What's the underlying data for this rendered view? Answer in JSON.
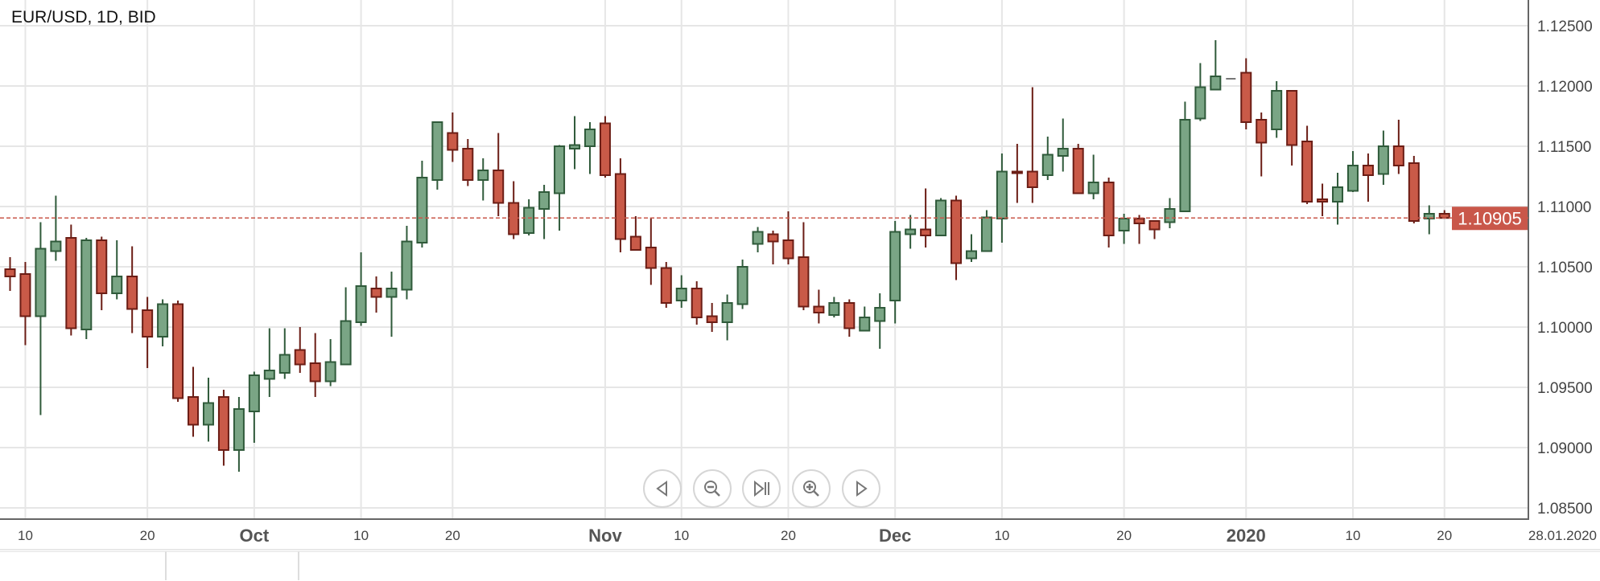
{
  "header": {
    "title": "EUR/USD, 1D, BID"
  },
  "navigation": [
    {
      "name": "scroll-left-button",
      "icon": "triangle-left-icon"
    },
    {
      "name": "zoom-out-button",
      "icon": "zoom-out-icon"
    },
    {
      "name": "reset-to-latest-button",
      "icon": "skip-to-end-icon"
    },
    {
      "name": "zoom-in-button",
      "icon": "zoom-in-icon"
    },
    {
      "name": "scroll-right-button",
      "icon": "triangle-right-icon"
    }
  ],
  "colors": {
    "up_fill": "#7aa585",
    "up_stroke": "#2f5a3a",
    "down_fill": "#c95a48",
    "down_stroke": "#6b1d15",
    "neutral": "#777777",
    "price_line": "#c9574a",
    "grid": "#e6e6e6"
  },
  "chart_data": {
    "type": "candlestick",
    "symbol": "EUR/USD",
    "timeframe": "1D",
    "price_type": "BID",
    "ylim": [
      1.0845,
      1.127
    ],
    "y_ticks": [
      "1.12500",
      "1.12000",
      "1.11500",
      "1.11000",
      "1.10500",
      "1.10000",
      "1.09500",
      "1.09000",
      "1.08500"
    ],
    "grid": true,
    "current_price": "1.10905",
    "x_ticks": [
      {
        "label": "10",
        "index": 1,
        "bold": false
      },
      {
        "label": "20",
        "index": 9,
        "bold": false
      },
      {
        "label": "Oct",
        "index": 16,
        "bold": true
      },
      {
        "label": "10",
        "index": 23,
        "bold": false
      },
      {
        "label": "20",
        "index": 29,
        "bold": false
      },
      {
        "label": "Nov",
        "index": 39,
        "bold": true
      },
      {
        "label": "10",
        "index": 44,
        "bold": false
      },
      {
        "label": "20",
        "index": 51,
        "bold": false
      },
      {
        "label": "Dec",
        "index": 58,
        "bold": true
      },
      {
        "label": "10",
        "index": 65,
        "bold": false
      },
      {
        "label": "20",
        "index": 73,
        "bold": false
      },
      {
        "label": "2020",
        "index": 81,
        "bold": true
      },
      {
        "label": "10",
        "index": 88,
        "bold": false
      },
      {
        "label": "20",
        "index": 94,
        "bold": false
      }
    ],
    "x_end_label": "28.01.2020",
    "ohlc_fields": [
      "open",
      "high",
      "low",
      "close"
    ],
    "candles": [
      [
        1.1048,
        1.1058,
        1.103,
        1.1042
      ],
      [
        1.1044,
        1.1054,
        1.0985,
        1.1009
      ],
      [
        1.1009,
        1.1087,
        1.0927,
        1.1065
      ],
      [
        1.1063,
        1.1109,
        1.1055,
        1.1071
      ],
      [
        1.1074,
        1.1085,
        1.0993,
        1.0999
      ],
      [
        1.0998,
        1.1074,
        1.099,
        1.1072
      ],
      [
        1.1072,
        1.1075,
        1.1014,
        1.1028
      ],
      [
        1.1028,
        1.1072,
        1.1023,
        1.1042
      ],
      [
        1.1042,
        1.1067,
        1.0995,
        1.1015
      ],
      [
        1.1014,
        1.1025,
        1.0966,
        1.0992
      ],
      [
        1.0992,
        1.1023,
        1.0984,
        1.1019
      ],
      [
        1.1019,
        1.1022,
        1.0938,
        1.0941
      ],
      [
        1.0942,
        1.0967,
        1.0909,
        1.0919
      ],
      [
        1.0919,
        1.0958,
        1.0905,
        1.0937
      ],
      [
        1.0942,
        1.0948,
        1.0885,
        1.0898
      ],
      [
        1.0898,
        1.0942,
        1.088,
        1.0932
      ],
      [
        1.093,
        1.0963,
        1.0904,
        1.096
      ],
      [
        1.0957,
        1.0999,
        1.0942,
        1.0964
      ],
      [
        1.0962,
        1.0999,
        1.0957,
        1.0977
      ],
      [
        1.0981,
        1.1,
        1.0962,
        1.0969
      ],
      [
        1.097,
        1.0995,
        1.0942,
        1.0955
      ],
      [
        1.0955,
        1.099,
        1.0951,
        1.0971
      ],
      [
        1.0969,
        1.1033,
        1.0969,
        1.1005
      ],
      [
        1.1004,
        1.1062,
        1.1001,
        1.1034
      ],
      [
        1.1032,
        1.1042,
        1.1012,
        1.1025
      ],
      [
        1.1025,
        1.1046,
        1.0992,
        1.1032
      ],
      [
        1.1031,
        1.1084,
        1.1023,
        1.1071
      ],
      [
        1.107,
        1.1138,
        1.1066,
        1.1124
      ],
      [
        1.1122,
        1.117,
        1.1114,
        1.117
      ],
      [
        1.1161,
        1.1178,
        1.1137,
        1.1147
      ],
      [
        1.1148,
        1.1156,
        1.1117,
        1.1122
      ],
      [
        1.1122,
        1.114,
        1.1105,
        1.113
      ],
      [
        1.113,
        1.1161,
        1.1092,
        1.1103
      ],
      [
        1.1103,
        1.1121,
        1.1073,
        1.1077
      ],
      [
        1.1078,
        1.1106,
        1.1076,
        1.1099
      ],
      [
        1.1098,
        1.1118,
        1.1073,
        1.1112
      ],
      [
        1.1111,
        1.1151,
        1.108,
        1.115
      ],
      [
        1.1148,
        1.1175,
        1.1131,
        1.1151
      ],
      [
        1.115,
        1.117,
        1.1127,
        1.1164
      ],
      [
        1.1169,
        1.1175,
        1.1124,
        1.1126
      ],
      [
        1.1127,
        1.114,
        1.1062,
        1.1073
      ],
      [
        1.1075,
        1.1092,
        1.1064,
        1.1064
      ],
      [
        1.1066,
        1.1091,
        1.1035,
        1.1049
      ],
      [
        1.1049,
        1.1054,
        1.1016,
        1.102
      ],
      [
        1.1022,
        1.1043,
        1.1016,
        1.1032
      ],
      [
        1.1032,
        1.1038,
        1.1002,
        1.1008
      ],
      [
        1.1009,
        1.102,
        1.0996,
        1.1004
      ],
      [
        1.1004,
        1.1027,
        1.0989,
        1.102
      ],
      [
        1.1019,
        1.1056,
        1.1015,
        1.105
      ],
      [
        1.1069,
        1.1083,
        1.1062,
        1.1079
      ],
      [
        1.1077,
        1.108,
        1.1052,
        1.1071
      ],
      [
        1.1072,
        1.1096,
        1.1052,
        1.1057
      ],
      [
        1.1058,
        1.1087,
        1.1014,
        1.1017
      ],
      [
        1.1017,
        1.1031,
        1.1003,
        1.1012
      ],
      [
        1.101,
        1.1025,
        1.1008,
        1.102
      ],
      [
        1.102,
        1.1023,
        1.0992,
        1.0999
      ],
      [
        1.0997,
        1.1017,
        1.0997,
        1.1008
      ],
      [
        1.1005,
        1.1028,
        1.0982,
        1.1016
      ],
      [
        1.1022,
        1.1088,
        1.1003,
        1.1079
      ],
      [
        1.1077,
        1.1093,
        1.1065,
        1.1081
      ],
      [
        1.1081,
        1.1115,
        1.1066,
        1.1076
      ],
      [
        1.1076,
        1.1107,
        1.1076,
        1.1105
      ],
      [
        1.1105,
        1.1109,
        1.1039,
        1.1053
      ],
      [
        1.1057,
        1.1077,
        1.1054,
        1.1063
      ],
      [
        1.1063,
        1.1097,
        1.1063,
        1.1091
      ],
      [
        1.109,
        1.1144,
        1.107,
        1.1129
      ],
      [
        1.1129,
        1.1152,
        1.1103,
        1.1128
      ],
      [
        1.1129,
        1.1199,
        1.1103,
        1.1116
      ],
      [
        1.1126,
        1.1158,
        1.1122,
        1.1143
      ],
      [
        1.1142,
        1.1173,
        1.1129,
        1.1148
      ],
      [
        1.1148,
        1.1152,
        1.1111,
        1.1111
      ],
      [
        1.1111,
        1.1143,
        1.1106,
        1.112
      ],
      [
        1.112,
        1.1124,
        1.1066,
        1.1076
      ],
      [
        1.108,
        1.1094,
        1.1069,
        1.109
      ],
      [
        1.109,
        1.1093,
        1.1069,
        1.1086
      ],
      [
        1.1088,
        1.1088,
        1.1073,
        1.1081
      ],
      [
        1.1087,
        1.1107,
        1.1082,
        1.1098
      ],
      [
        1.1096,
        1.1187,
        1.1096,
        1.1172
      ],
      [
        1.1173,
        1.1219,
        1.1171,
        1.1199
      ],
      [
        1.1197,
        1.1238,
        1.1197,
        1.1208
      ],
      [
        1.1206,
        1.1206,
        1.1206,
        1.1206
      ],
      [
        1.1211,
        1.1223,
        1.1164,
        1.117
      ],
      [
        1.1172,
        1.1178,
        1.1125,
        1.1153
      ],
      [
        1.1164,
        1.1204,
        1.1157,
        1.1196
      ],
      [
        1.1196,
        1.1196,
        1.1134,
        1.1151
      ],
      [
        1.1154,
        1.1167,
        1.1102,
        1.1104
      ],
      [
        1.1106,
        1.1119,
        1.1092,
        1.1104
      ],
      [
        1.1104,
        1.1128,
        1.1085,
        1.1116
      ],
      [
        1.1113,
        1.1146,
        1.1112,
        1.1134
      ],
      [
        1.1134,
        1.1144,
        1.1104,
        1.1126
      ],
      [
        1.1127,
        1.1163,
        1.1118,
        1.115
      ],
      [
        1.115,
        1.1172,
        1.1127,
        1.1134
      ],
      [
        1.1136,
        1.1142,
        1.1086,
        1.1088
      ],
      [
        1.109,
        1.1101,
        1.1077,
        1.1094
      ],
      [
        1.1094,
        1.1097,
        1.10905,
        1.10905
      ]
    ]
  }
}
